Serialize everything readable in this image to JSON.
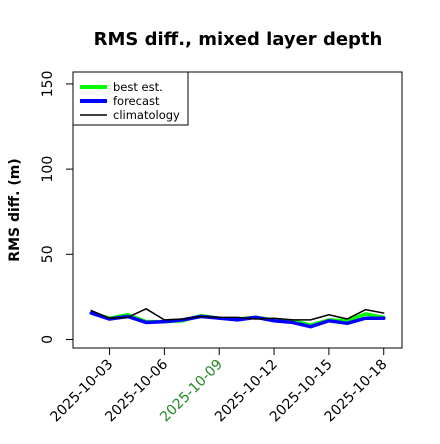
{
  "chart_data": {
    "type": "line",
    "title": "RMS diff., mixed layer depth",
    "xlabel": "",
    "ylabel": "RMS diff. (m)",
    "xlim": [
      "2025-10-01",
      "2025-10-19"
    ],
    "ylim": [
      -5,
      157
    ],
    "yticks": [
      0,
      50,
      100,
      150
    ],
    "xticks": [
      "2025-10-03",
      "2025-10-06",
      "2025-10-09",
      "2025-10-12",
      "2025-10-15",
      "2025-10-18"
    ],
    "highlighted_tick": "2025-10-09",
    "highlighted_tick_color": "#228b22",
    "x": [
      "2025-10-02",
      "2025-10-03",
      "2025-10-04",
      "2025-10-05",
      "2025-10-06",
      "2025-10-07",
      "2025-10-08",
      "2025-10-09",
      "2025-10-10",
      "2025-10-11",
      "2025-10-12",
      "2025-10-13",
      "2025-10-14",
      "2025-10-15",
      "2025-10-16",
      "2025-10-17",
      "2025-10-18"
    ],
    "series": [
      {
        "name": "best est.",
        "color": "#00ff00",
        "values": [
          15.5,
          12.5,
          14.5,
          10.5,
          10.5,
          11,
          14,
          12.5,
          12,
          13,
          11.5,
          11,
          8.5,
          11.5,
          11,
          15,
          13
        ]
      },
      {
        "name": "forecast",
        "color": "#0000ff",
        "values": [
          15.5,
          12,
          13.5,
          10,
          10.5,
          11.5,
          13.5,
          12.5,
          11.5,
          13,
          11,
          10,
          7.5,
          11,
          9.5,
          12.5,
          12.5
        ]
      },
      {
        "name": "climatology",
        "color": "#000000",
        "values": [
          17,
          12.5,
          13,
          18,
          11.5,
          12,
          13.5,
          13,
          13,
          12,
          12.5,
          11.5,
          11.5,
          14.5,
          12,
          17.5,
          15.5
        ]
      }
    ],
    "legend_position": "top-left",
    "grid": false
  }
}
